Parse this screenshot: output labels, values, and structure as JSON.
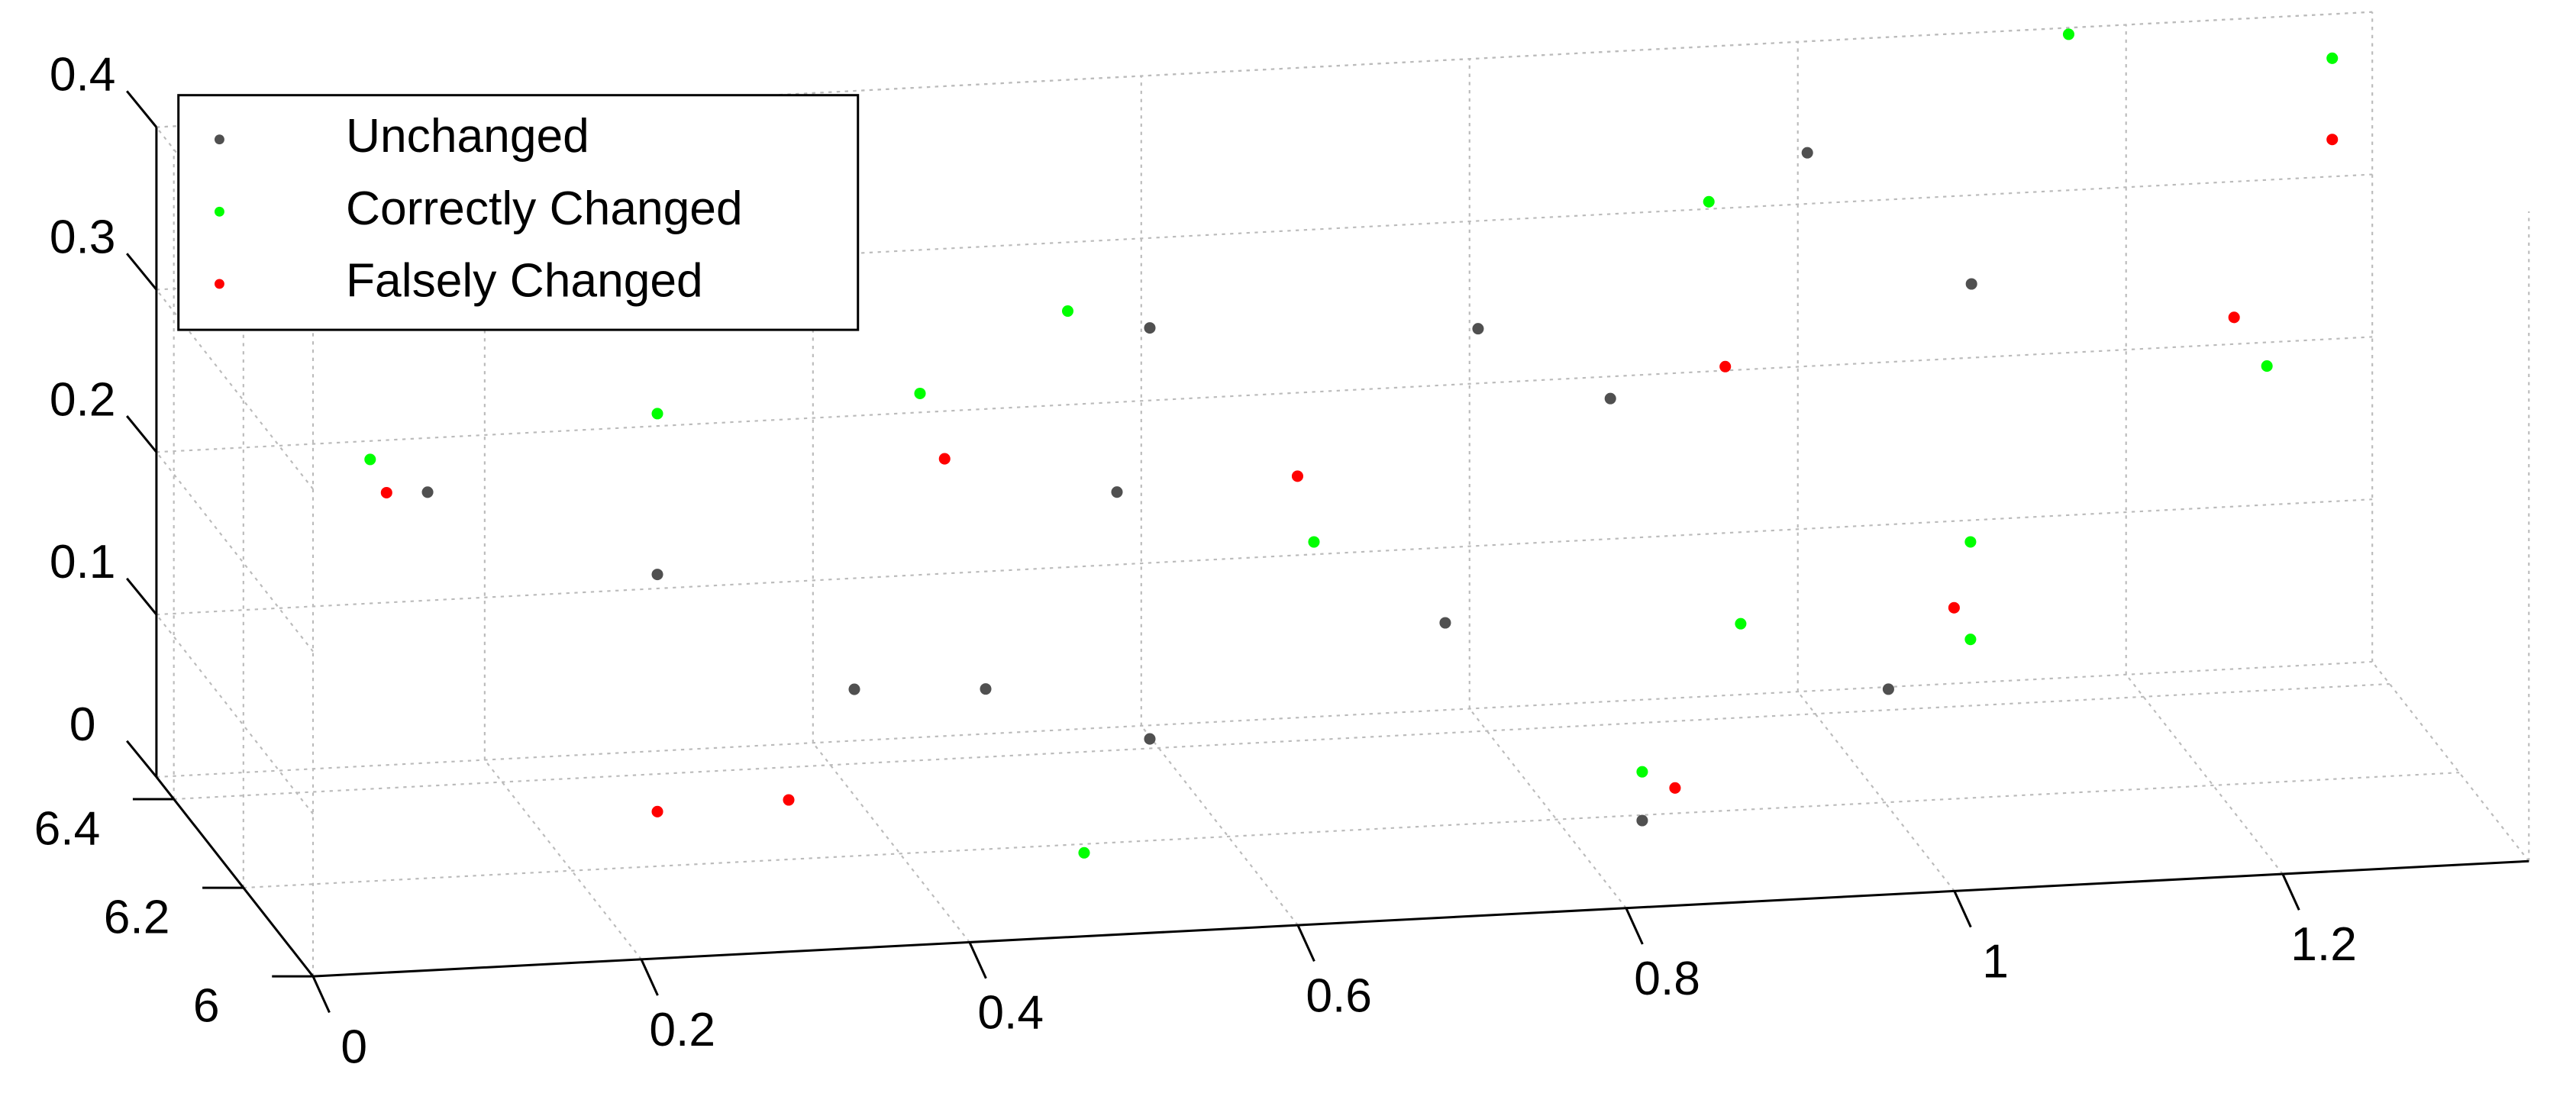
{
  "chart_data": {
    "type": "scatter3d",
    "xlim": [
      0,
      1.35
    ],
    "ylim": [
      6,
      6.45
    ],
    "zlim": [
      0,
      0.4
    ],
    "xticks": [
      0,
      0.2,
      0.4,
      0.6,
      0.8,
      1,
      1.2
    ],
    "yticks": [
      6,
      6.2,
      6.4
    ],
    "zticks": [
      0,
      0.1,
      0.2,
      0.3,
      0.4
    ],
    "grid": true,
    "legend": "top-left",
    "series": [
      {
        "name": "Unchanged",
        "color": "#505050",
        "x": [
          0.091,
          0.231,
          0.351,
          0.531,
          0.511,
          0.531,
          0.731,
          0.711,
          0.831,
          0.974,
          1.074,
          0.981,
          0.854,
          0.431
        ],
        "y": [
          6.1,
          6.1,
          6.1,
          6.1,
          6.1,
          6.1,
          6.1,
          6.1,
          6.1,
          6.3,
          6.3,
          6.1,
          6.3,
          6.1
        ],
        "z": [
          0.266,
          0.208,
          0.131,
          0.344,
          0.244,
          0.091,
          0.333,
          0.153,
          0.025,
          0.374,
          0.288,
          0.098,
          0.229,
          0.127
        ]
      },
      {
        "name": "Correctly Changed",
        "color": "#00ff00",
        "x": [
          0.056,
          0.231,
          0.391,
          0.481,
          0.491,
          0.831,
          1.031,
          1.254,
          1.165,
          1.315,
          0.914,
          0.631,
          0.891,
          1.031
        ],
        "y": [
          6.1,
          6.1,
          6.1,
          6.1,
          6.1,
          6.1,
          6.1,
          6.3,
          6.45,
          6.4,
          6.3,
          6.1,
          6.1,
          6.1
        ],
        "z": [
          0.288,
          0.307,
          0.311,
          0.357,
          0.023,
          0.055,
          0.186,
          0.228,
          0.396,
          0.387,
          0.347,
          0.207,
          0.143,
          0.126
        ]
      },
      {
        "name": "Falsely Changed",
        "color": "#ff0000",
        "x": [
          0.066,
          0.231,
          0.311,
          0.406,
          0.621,
          0.851,
          1.021,
          1.234,
          1.315,
          0.924
        ],
        "y": [
          6.1,
          6.1,
          6.1,
          6.1,
          6.1,
          6.1,
          6.1,
          6.3,
          6.4,
          6.3
        ],
        "z": [
          0.267,
          0.062,
          0.065,
          0.27,
          0.248,
          0.044,
          0.146,
          0.259,
          0.337,
          0.245
        ]
      }
    ]
  }
}
